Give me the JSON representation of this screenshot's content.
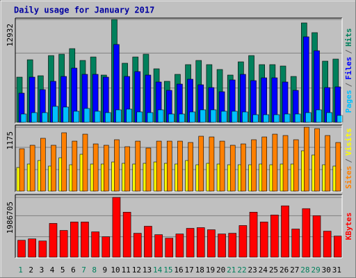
{
  "chart_data": [
    {
      "type": "bar",
      "title": "Daily usage for January 2017",
      "categories": [
        "1",
        "2",
        "3",
        "4",
        "5",
        "6",
        "7",
        "8",
        "9",
        "10",
        "11",
        "12",
        "13",
        "14",
        "15",
        "16",
        "17",
        "18",
        "19",
        "20",
        "21",
        "22",
        "23",
        "24",
        "25",
        "26",
        "27",
        "28",
        "29",
        "30",
        "31"
      ],
      "weekends": [
        1,
        7,
        8,
        14,
        15,
        21,
        22,
        28,
        29
      ],
      "weekend_color": "#00805c",
      "legend_separator": "/",
      "ylim": [
        0,
        12932
      ],
      "yticks": [
        12932
      ],
      "grid": true,
      "series": [
        {
          "name": "Hits",
          "color": "#00805c",
          "values": [
            5680,
            7866,
            5856,
            8390,
            8565,
            9264,
            7778,
            8215,
            5943,
            12932,
            7429,
            8215,
            8565,
            6730,
            5157,
            6031,
            7254,
            7778,
            7254,
            6642,
            5943,
            7604,
            8390,
            7254,
            7254,
            7079,
            5768,
            12498,
            11275,
            7691,
            7953
          ]
        },
        {
          "name": "Files",
          "color": "#0000ff",
          "values": [
            3671,
            5681,
            4108,
            5157,
            5768,
            6817,
            6031,
            6031,
            5681,
            9789,
            5768,
            6380,
            5943,
            5069,
            4020,
            4807,
            5419,
            4720,
            4370,
            3846,
            5331,
            6031,
            5244,
            5594,
            5594,
            5069,
            4020,
            10750,
            9002,
            4370,
            4457
          ]
        },
        {
          "name": "Pages",
          "color": "#00c0ff",
          "values": [
            1049,
            1224,
            1224,
            2010,
            1923,
            1398,
            1748,
            1398,
            1224,
            1573,
            1661,
            1311,
            1224,
            1573,
            1049,
            1049,
            1311,
            1573,
            1573,
            1398,
            1398,
            1311,
            961,
            961,
            961,
            1049,
            1049,
            1224,
            1573,
            1224,
            874
          ]
        }
      ]
    },
    {
      "type": "bar",
      "ylim": [
        0,
        1175
      ],
      "yticks": [
        1175
      ],
      "grid": true,
      "series": [
        {
          "name": "Visits",
          "color": "#ffff00",
          "values": [
            434,
            498,
            562,
            460,
            613,
            485,
            677,
            498,
            498,
            536,
            511,
            498,
            511,
            536,
            511,
            498,
            562,
            485,
            511,
            498,
            485,
            485,
            485,
            498,
            485,
            498,
            498,
            741,
            664,
            485,
            460
          ]
        },
        {
          "name": "Sites",
          "color": "#ff8000",
          "values": [
            779,
            843,
            971,
            843,
            1073,
            919,
            1047,
            868,
            843,
            945,
            817,
            919,
            792,
            919,
            919,
            919,
            894,
            1009,
            996,
            919,
            843,
            868,
            945,
            996,
            1047,
            1022,
            945,
            1175,
            1149,
            1022,
            894
          ]
        }
      ]
    },
    {
      "type": "bar",
      "ylim": [
        0,
        1986705
      ],
      "yticks": [
        1986705
      ],
      "grid": true,
      "series": [
        {
          "name": "KBytes",
          "color": "#ff0000",
          "values": [
            560952,
            607698,
            537579,
            1121904,
            888174,
            1168650,
            1168650,
            841428,
            677817,
            1986705,
            1495872,
            794682,
            1028412,
            747936,
            631071,
            771309,
            958293,
            981666,
            911547,
            771309,
            794682,
            1051785,
            1495872,
            1168650,
            1402380,
            1706229,
            934920,
            1612737,
            1379007,
            864801,
            701190
          ]
        }
      ]
    }
  ]
}
